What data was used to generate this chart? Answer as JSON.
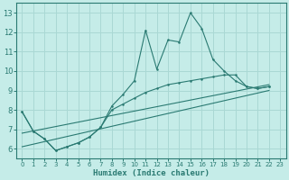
{
  "xlabel": "Humidex (Indice chaleur)",
  "bg_color": "#c5ece8",
  "grid_color": "#aad8d4",
  "line_color": "#2a7a72",
  "xlim": [
    -0.5,
    23.5
  ],
  "ylim": [
    5.5,
    13.5
  ],
  "xticks": [
    0,
    1,
    2,
    3,
    4,
    5,
    6,
    7,
    8,
    9,
    10,
    11,
    12,
    13,
    14,
    15,
    16,
    17,
    18,
    19,
    20,
    21,
    22,
    23
  ],
  "yticks": [
    6,
    7,
    8,
    9,
    10,
    11,
    12,
    13
  ],
  "series1_x": [
    0,
    1,
    2,
    3,
    4,
    5,
    6,
    7,
    8,
    9,
    10,
    11,
    12,
    13,
    14,
    15,
    16,
    17,
    18,
    19,
    20,
    21,
    22
  ],
  "series1_y": [
    7.9,
    6.9,
    6.5,
    5.9,
    6.1,
    6.3,
    6.6,
    7.1,
    8.2,
    8.8,
    9.5,
    12.1,
    10.1,
    11.6,
    11.5,
    13.0,
    12.2,
    10.6,
    10.0,
    9.5,
    9.2,
    9.1,
    9.2
  ],
  "series2_x": [
    0,
    1,
    2,
    3,
    4,
    5,
    6,
    7,
    8,
    9,
    10,
    11,
    12,
    13,
    14,
    15,
    16,
    17,
    18,
    19,
    20,
    21,
    22
  ],
  "series2_y": [
    7.9,
    6.9,
    6.5,
    5.9,
    6.1,
    6.3,
    6.6,
    7.1,
    8.0,
    8.3,
    8.6,
    8.9,
    9.1,
    9.3,
    9.4,
    9.5,
    9.6,
    9.7,
    9.8,
    9.8,
    9.2,
    9.1,
    9.2
  ],
  "trend1_x": [
    0,
    22
  ],
  "trend1_y": [
    6.8,
    9.3
  ],
  "trend2_x": [
    0,
    22
  ],
  "trend2_y": [
    6.1,
    9.0
  ]
}
